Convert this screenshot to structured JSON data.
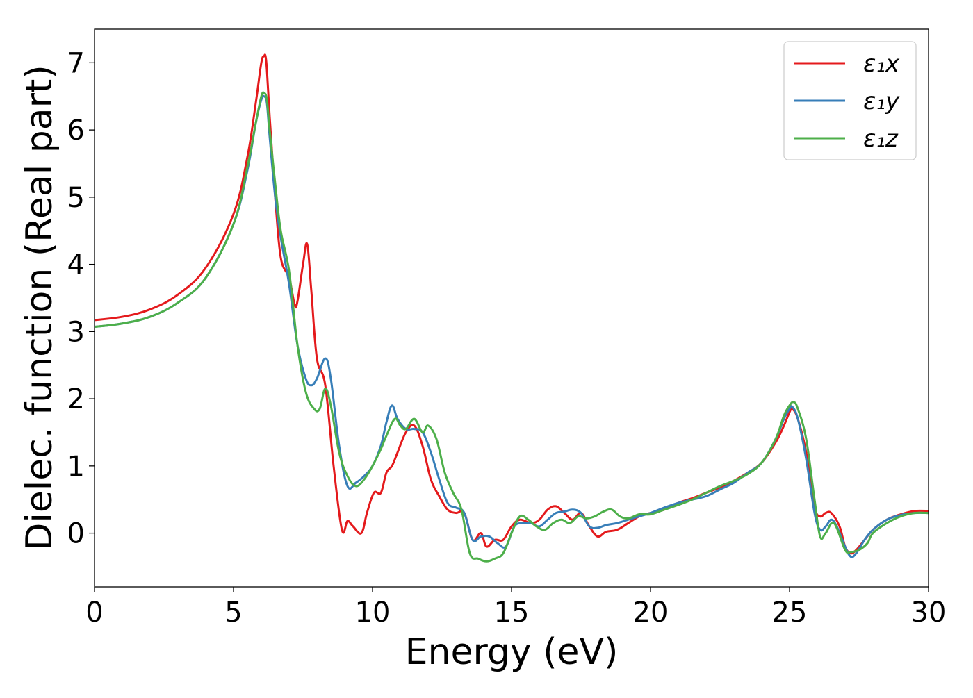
{
  "chart_data": {
    "type": "line",
    "title": "",
    "xlabel": "Energy (eV)",
    "ylabel": "Dielec. function (Real part)",
    "xlim": [
      0,
      30
    ],
    "ylim": [
      -0.8,
      7.5
    ],
    "xticks": [
      0,
      5,
      10,
      15,
      20,
      25,
      30
    ],
    "yticks": [
      0,
      1,
      2,
      3,
      4,
      5,
      6,
      7
    ],
    "grid": false,
    "legend_position": "top-right",
    "series": [
      {
        "name": "ε₁x",
        "color": "#e41a1c",
        "x": [
          0,
          1,
          2,
          3,
          4,
          5,
          5.5,
          5.8,
          6.0,
          6.1,
          6.15,
          6.2,
          6.3,
          6.5,
          6.7,
          7.0,
          7.2,
          7.3,
          7.5,
          7.65,
          7.8,
          8.0,
          8.3,
          8.6,
          8.9,
          9.1,
          9.3,
          9.6,
          9.8,
          10.05,
          10.3,
          10.5,
          10.7,
          10.9,
          11.2,
          11.5,
          11.8,
          12.1,
          12.4,
          12.7,
          13.0,
          13.3,
          13.6,
          13.9,
          14.1,
          14.4,
          14.7,
          15.0,
          15.3,
          15.7,
          16.0,
          16.3,
          16.6,
          16.9,
          17.2,
          17.5,
          17.8,
          18.1,
          18.4,
          18.8,
          19.2,
          19.6,
          20.0,
          20.5,
          21.0,
          21.5,
          22.0,
          22.5,
          23.0,
          23.5,
          24.0,
          24.5,
          24.8,
          25.0,
          25.1,
          25.3,
          25.6,
          25.9,
          26.1,
          26.3,
          26.5,
          26.8,
          27.0,
          27.2,
          27.4,
          27.7,
          28.0,
          28.5,
          29.0,
          29.5,
          30.0
        ],
        "values": [
          3.17,
          3.22,
          3.33,
          3.55,
          3.95,
          4.75,
          5.6,
          6.4,
          7.0,
          7.1,
          7.1,
          6.9,
          6.2,
          5.0,
          4.1,
          3.8,
          3.4,
          3.45,
          4.0,
          4.3,
          3.6,
          2.6,
          2.2,
          1.0,
          0.05,
          0.18,
          0.1,
          0.0,
          0.3,
          0.6,
          0.6,
          0.9,
          1.0,
          1.2,
          1.5,
          1.6,
          1.3,
          0.8,
          0.55,
          0.35,
          0.3,
          0.3,
          -0.1,
          0.0,
          -0.2,
          -0.1,
          -0.1,
          0.1,
          0.2,
          0.15,
          0.2,
          0.35,
          0.4,
          0.3,
          0.2,
          0.3,
          0.1,
          -0.05,
          0.02,
          0.05,
          0.15,
          0.25,
          0.3,
          0.35,
          0.45,
          0.52,
          0.6,
          0.68,
          0.78,
          0.9,
          1.05,
          1.35,
          1.6,
          1.8,
          1.85,
          1.7,
          1.2,
          0.4,
          0.25,
          0.3,
          0.3,
          0.1,
          -0.2,
          -0.3,
          -0.25,
          -0.1,
          0.05,
          0.2,
          0.28,
          0.33,
          0.33
        ]
      },
      {
        "name": "ε₁y",
        "color": "#377eb8",
        "x": [
          0,
          1,
          2,
          3,
          4,
          5,
          5.5,
          5.8,
          6.0,
          6.1,
          6.2,
          6.3,
          6.5,
          6.7,
          7.0,
          7.3,
          7.6,
          7.8,
          8.0,
          8.3,
          8.5,
          8.8,
          9.1,
          9.4,
          9.7,
          10.0,
          10.3,
          10.5,
          10.7,
          10.9,
          11.2,
          11.5,
          11.8,
          12.1,
          12.4,
          12.7,
          13.0,
          13.3,
          13.6,
          13.9,
          14.2,
          14.5,
          14.8,
          15.1,
          15.4,
          15.7,
          16.0,
          16.3,
          16.6,
          16.9,
          17.2,
          17.5,
          17.8,
          18.1,
          18.4,
          18.8,
          19.2,
          19.6,
          20.0,
          20.5,
          21.0,
          21.5,
          22.0,
          22.5,
          23.0,
          23.5,
          24.0,
          24.5,
          24.8,
          25.0,
          25.1,
          25.3,
          25.6,
          25.9,
          26.1,
          26.3,
          26.5,
          26.7,
          27.0,
          27.2,
          27.4,
          27.7,
          28.0,
          28.5,
          29.0,
          29.5,
          30.0
        ],
        "values": [
          3.07,
          3.12,
          3.22,
          3.43,
          3.8,
          4.6,
          5.4,
          6.1,
          6.45,
          6.5,
          6.4,
          5.9,
          5.0,
          4.4,
          3.7,
          2.8,
          2.3,
          2.2,
          2.3,
          2.6,
          2.3,
          1.3,
          0.7,
          0.75,
          0.85,
          1.0,
          1.3,
          1.65,
          1.9,
          1.7,
          1.55,
          1.55,
          1.5,
          1.2,
          0.8,
          0.45,
          0.38,
          0.3,
          -0.1,
          -0.05,
          -0.05,
          -0.15,
          -0.2,
          0.1,
          0.15,
          0.15,
          0.1,
          0.2,
          0.3,
          0.32,
          0.35,
          0.3,
          0.1,
          0.08,
          0.12,
          0.15,
          0.2,
          0.25,
          0.3,
          0.38,
          0.45,
          0.5,
          0.55,
          0.65,
          0.75,
          0.9,
          1.05,
          1.4,
          1.7,
          1.85,
          1.88,
          1.7,
          1.1,
          0.3,
          0.05,
          0.1,
          0.2,
          0.1,
          -0.2,
          -0.35,
          -0.3,
          -0.1,
          0.05,
          0.2,
          0.27,
          0.3,
          0.3
        ]
      },
      {
        "name": "ε₁z",
        "color": "#4daf4a",
        "x": [
          0,
          1,
          2,
          3,
          4,
          5,
          5.5,
          5.8,
          6.0,
          6.1,
          6.2,
          6.3,
          6.5,
          6.7,
          7.0,
          7.3,
          7.6,
          7.9,
          8.1,
          8.3,
          8.5,
          8.8,
          9.1,
          9.4,
          9.7,
          10.0,
          10.3,
          10.5,
          10.8,
          11.0,
          11.2,
          11.5,
          11.8,
          12.0,
          12.3,
          12.6,
          12.9,
          13.2,
          13.5,
          13.8,
          14.1,
          14.4,
          14.7,
          15.0,
          15.3,
          15.6,
          15.9,
          16.2,
          16.5,
          16.8,
          17.1,
          17.4,
          17.7,
          18.0,
          18.3,
          18.6,
          18.9,
          19.2,
          19.6,
          20.0,
          20.5,
          21.0,
          21.5,
          22.0,
          22.5,
          23.0,
          23.5,
          24.0,
          24.5,
          24.8,
          25.0,
          25.15,
          25.3,
          25.6,
          25.9,
          26.1,
          26.3,
          26.6,
          27.0,
          27.2,
          27.5,
          27.8,
          28.0,
          28.5,
          29.0,
          29.5,
          30.0
        ],
        "values": [
          3.07,
          3.12,
          3.22,
          3.43,
          3.8,
          4.6,
          5.45,
          6.1,
          6.5,
          6.55,
          6.45,
          6.0,
          5.2,
          4.5,
          3.9,
          2.8,
          2.1,
          1.85,
          1.85,
          2.15,
          1.9,
          1.2,
          0.85,
          0.7,
          0.8,
          1.0,
          1.25,
          1.45,
          1.7,
          1.6,
          1.55,
          1.7,
          1.5,
          1.6,
          1.4,
          0.9,
          0.6,
          0.35,
          -0.3,
          -0.38,
          -0.42,
          -0.38,
          -0.3,
          0.0,
          0.25,
          0.2,
          0.1,
          0.05,
          0.15,
          0.2,
          0.15,
          0.25,
          0.22,
          0.25,
          0.32,
          0.35,
          0.25,
          0.22,
          0.28,
          0.28,
          0.35,
          0.42,
          0.5,
          0.6,
          0.7,
          0.78,
          0.88,
          1.05,
          1.4,
          1.75,
          1.9,
          1.95,
          1.85,
          1.4,
          0.5,
          -0.05,
          0.0,
          0.15,
          -0.25,
          -0.28,
          -0.25,
          -0.15,
          0.0,
          0.15,
          0.25,
          0.3,
          0.3
        ]
      }
    ]
  }
}
